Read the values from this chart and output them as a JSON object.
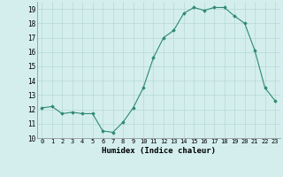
{
  "x": [
    0,
    1,
    2,
    3,
    4,
    5,
    6,
    7,
    8,
    9,
    10,
    11,
    12,
    13,
    14,
    15,
    16,
    17,
    18,
    19,
    20,
    21,
    22,
    23
  ],
  "y": [
    12.1,
    12.2,
    11.7,
    11.8,
    11.7,
    11.7,
    10.5,
    10.4,
    11.1,
    12.1,
    13.5,
    15.6,
    17.0,
    17.5,
    18.7,
    19.1,
    18.9,
    19.1,
    19.1,
    18.5,
    18.0,
    16.1,
    13.5,
    12.6
  ],
  "xlabel": "Humidex (Indice chaleur)",
  "ylim": [
    10,
    19.5
  ],
  "xlim": [
    -0.5,
    23.5
  ],
  "yticks": [
    10,
    11,
    12,
    13,
    14,
    15,
    16,
    17,
    18,
    19
  ],
  "xticks": [
    0,
    1,
    2,
    3,
    4,
    5,
    6,
    7,
    8,
    9,
    10,
    11,
    12,
    13,
    14,
    15,
    16,
    17,
    18,
    19,
    20,
    21,
    22,
    23
  ],
  "xtick_labels": [
    "0",
    "1",
    "2",
    "3",
    "4",
    "5",
    "6",
    "7",
    "8",
    "9",
    "10",
    "11",
    "12",
    "13",
    "14",
    "15",
    "16",
    "17",
    "18",
    "19",
    "20",
    "21",
    "22",
    "23"
  ],
  "line_color": "#2d8a6e",
  "marker": "D",
  "marker_size": 1.8,
  "bg_color": "#d4eeee",
  "grid_color": "#b8d8d8",
  "title": ""
}
